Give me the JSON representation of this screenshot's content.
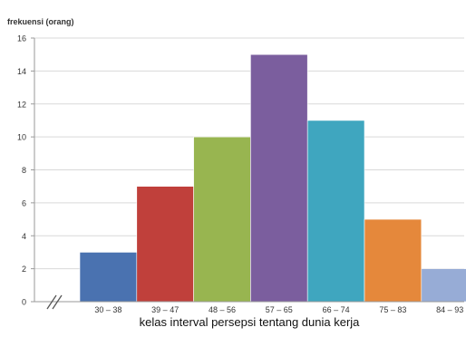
{
  "chart_data": {
    "type": "bar",
    "ylabel": "frekuensi (orang)",
    "xlabel": "kelas interval persepsi tentang dunia kerja",
    "categories": [
      "30 – 38",
      "39 – 47",
      "48 – 56",
      "57 – 65",
      "66 – 74",
      "75 – 83",
      "84 – 93"
    ],
    "values": [
      3,
      7,
      10,
      15,
      11,
      5,
      2
    ],
    "colors": [
      "#4a72b0",
      "#c0403b",
      "#98b550",
      "#7b5e9e",
      "#3fa6bf",
      "#e5883b",
      "#97acd6"
    ],
    "ylim": [
      0,
      16
    ],
    "yticks": [
      0,
      2,
      4,
      6,
      8,
      10,
      12,
      14,
      16
    ],
    "grid": true,
    "legend": "none",
    "axis_break": "x-axis origin"
  }
}
